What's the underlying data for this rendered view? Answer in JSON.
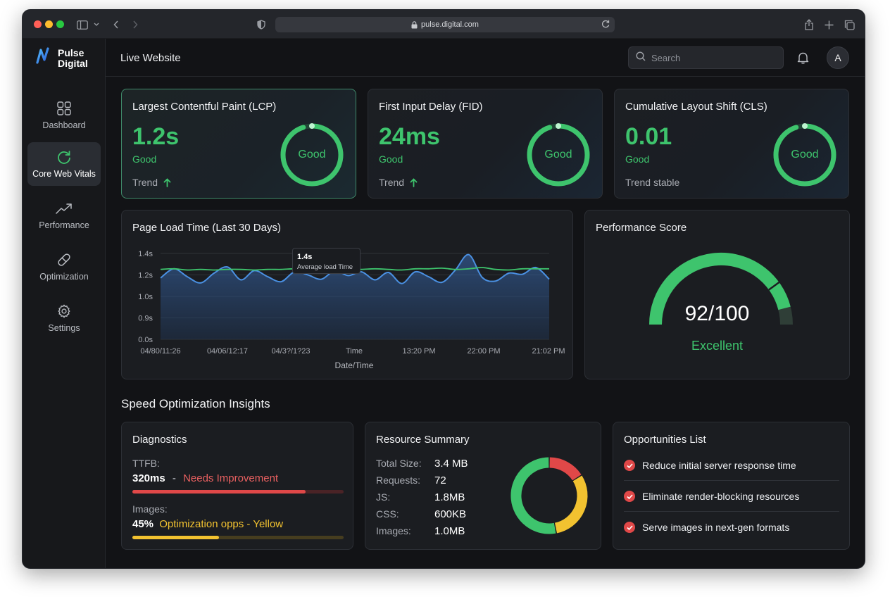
{
  "browser": {
    "url": "pulse.digital.com",
    "colors": {
      "close": "#ff5f57",
      "minimize": "#febc2e",
      "maximize": "#28c840"
    }
  },
  "brand": {
    "line1": "Pulse",
    "line2": "Digital"
  },
  "sidebar": {
    "items": [
      {
        "label": "Dashboard",
        "icon": "grid-icon",
        "active": false
      },
      {
        "label": "Core Web Vitals",
        "icon": "refresh-icon",
        "active": true
      },
      {
        "label": "Performance",
        "icon": "trend-up-icon",
        "active": false
      },
      {
        "label": "Optimization",
        "icon": "pill-icon",
        "active": false
      },
      {
        "label": "Settings",
        "icon": "gear-icon",
        "active": false
      }
    ]
  },
  "header": {
    "title": "Live Website",
    "search_placeholder": "Search",
    "avatar_initial": "A"
  },
  "vitals": [
    {
      "title": "Largest Contentful Paint (LCP)",
      "value": "1.2s",
      "status": "Good",
      "trend": "Trend",
      "trend_arrow": "up",
      "ring_label": "Good",
      "ring_fraction": 0.95
    },
    {
      "title": "First Input Delay (FID)",
      "value": "24ms",
      "status": "Good",
      "trend": "Trend",
      "trend_arrow": "up",
      "ring_label": "Good",
      "ring_fraction": 0.95
    },
    {
      "title": "Cumulative Layout Shift (CLS)",
      "value": "0.01",
      "status": "Good",
      "trend": "Trend stable",
      "trend_arrow": "none",
      "ring_label": "Good",
      "ring_fraction": 0.95
    }
  ],
  "load_chart": {
    "title": "Page Load Time (Last 30 Days)",
    "tooltip_value": "1.4s",
    "tooltip_label": "Average load Time"
  },
  "chart_data": {
    "type": "line",
    "xlabel": "Date/Time",
    "ylabel": "",
    "ylim": [
      0.0,
      1.4
    ],
    "y_ticks": [
      "1.4s",
      "1.2s",
      "1.0s",
      "0.9s",
      "0.0s"
    ],
    "x_ticks": [
      "04/80/11:26",
      "04/06/12:17",
      "04/3?/1?23",
      "Time",
      "13:20 PM",
      "22:00 PM",
      "21:02 PM"
    ],
    "x": [
      0,
      1,
      2,
      3,
      4,
      5,
      6,
      7,
      8,
      9,
      10,
      11,
      12,
      13,
      14,
      15,
      16,
      17,
      18,
      19,
      20,
      21,
      22,
      23,
      24,
      25,
      26,
      27,
      28,
      29
    ],
    "series": [
      {
        "color": "#4a90e2",
        "values": [
          1.0,
          1.15,
          1.02,
          0.92,
          1.08,
          1.18,
          0.97,
          1.12,
          1.02,
          0.94,
          1.1,
          1.05,
          0.98,
          1.12,
          1.04,
          1.1,
          0.97,
          1.09,
          0.91,
          1.1,
          1.02,
          0.93,
          1.13,
          1.38,
          1.01,
          0.95,
          1.08,
          1.06,
          1.17,
          0.98
        ]
      },
      {
        "color": "#3ec46d",
        "values": [
          1.14,
          1.15,
          1.13,
          1.14,
          1.13,
          1.14,
          1.14,
          1.13,
          1.14,
          1.14,
          1.15,
          1.14,
          1.14,
          1.15,
          1.14,
          1.14,
          1.15,
          1.14,
          1.13,
          1.15,
          1.15,
          1.16,
          1.14,
          1.15,
          1.17,
          1.14,
          1.13,
          1.15,
          1.15,
          1.15
        ]
      }
    ],
    "grid": true
  },
  "score": {
    "title": "Performance Score",
    "value": "92/100",
    "label": "Excellent",
    "fraction": 0.92,
    "color": "#3ec46d"
  },
  "section_title": "Speed Optimization Insights",
  "diagnostics": {
    "title": "Diagnostics",
    "ttfb_label": "TTFB:",
    "ttfb_value": "320ms",
    "ttfb_sep": "-",
    "ttfb_status": "Needs Improvement",
    "ttfb_fraction": 0.82,
    "ttfb_color": "#e04848",
    "images_label": "Images:",
    "images_value": "45%",
    "images_status": "Optimization opps - Yellow",
    "images_fraction": 0.41,
    "images_color": "#f2c230"
  },
  "resources": {
    "title": "Resource Summary",
    "rows": [
      {
        "k": "Total Size:",
        "v": "3.4 MB"
      },
      {
        "k": "Requests:",
        "v": "72"
      },
      {
        "k": "JS:",
        "v": "1.8MB"
      },
      {
        "k": "CSS:",
        "v": "600KB"
      },
      {
        "k": "Images:",
        "v": "1.0MB"
      }
    ],
    "donut": [
      {
        "name": "red",
        "fraction": 0.16,
        "color": "#e04848"
      },
      {
        "name": "yellow",
        "fraction": 0.31,
        "color": "#f2c230"
      },
      {
        "name": "green",
        "fraction": 0.53,
        "color": "#3ec46d"
      }
    ]
  },
  "opportunities": {
    "title": "Opportunities List",
    "items": [
      "Reduce initial server response time",
      "Eliminate render-blocking resources",
      "Serve images in next-gen formats"
    ]
  }
}
